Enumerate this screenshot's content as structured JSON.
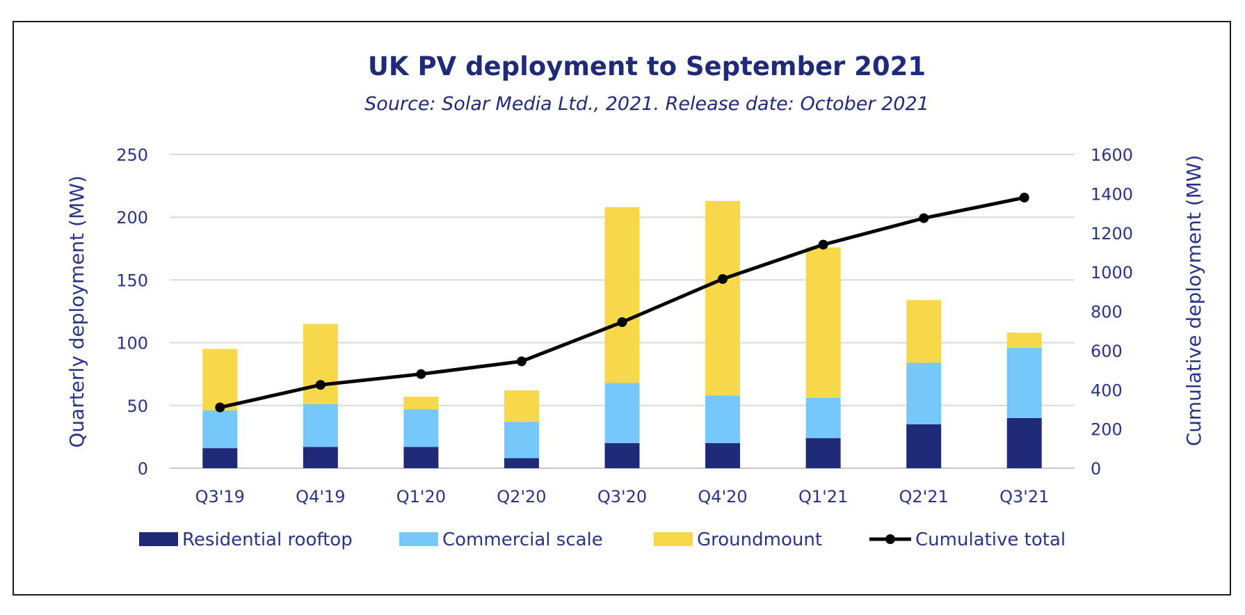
{
  "chart_data": {
    "type": "bar",
    "stacked": true,
    "title": "UK PV deployment to September 2021",
    "subtitle": "Source: Solar Media Ltd., 2021. Release date: October 2021",
    "categories": [
      "Q3'19",
      "Q4'19",
      "Q1'20",
      "Q2'20",
      "Q3'20",
      "Q4'20",
      "Q1'21",
      "Q2'21",
      "Q3'21"
    ],
    "series": [
      {
        "name": "Residential rooftop",
        "type": "bar",
        "axis": "left",
        "color": "#1f2a78",
        "values": [
          16,
          17,
          17,
          8,
          20,
          20,
          24,
          35,
          40
        ]
      },
      {
        "name": "Commercial scale",
        "type": "bar",
        "axis": "left",
        "color": "#76c8fb",
        "values": [
          30,
          34,
          30,
          29,
          48,
          38,
          32,
          49,
          56
        ]
      },
      {
        "name": "Groundmount",
        "type": "bar",
        "axis": "left",
        "color": "#f7d84a",
        "values": [
          49,
          64,
          10,
          25,
          140,
          155,
          120,
          50,
          12
        ]
      },
      {
        "name": "Cumulative total",
        "type": "line",
        "axis": "right",
        "color": "#000000",
        "values": [
          310,
          425,
          480,
          545,
          745,
          965,
          1140,
          1275,
          1380
        ]
      }
    ],
    "ylabel": "Quarterly deployment (MW)",
    "y2label": "Cumulative deployment (MW)",
    "ylim": [
      0,
      250
    ],
    "y2lim": [
      0,
      1600
    ],
    "yticks": [
      0,
      50,
      100,
      150,
      200,
      250
    ],
    "y2ticks": [
      0,
      200,
      400,
      600,
      800,
      1000,
      1200,
      1400,
      1600
    ],
    "grid": true,
    "legend_position": "bottom"
  }
}
